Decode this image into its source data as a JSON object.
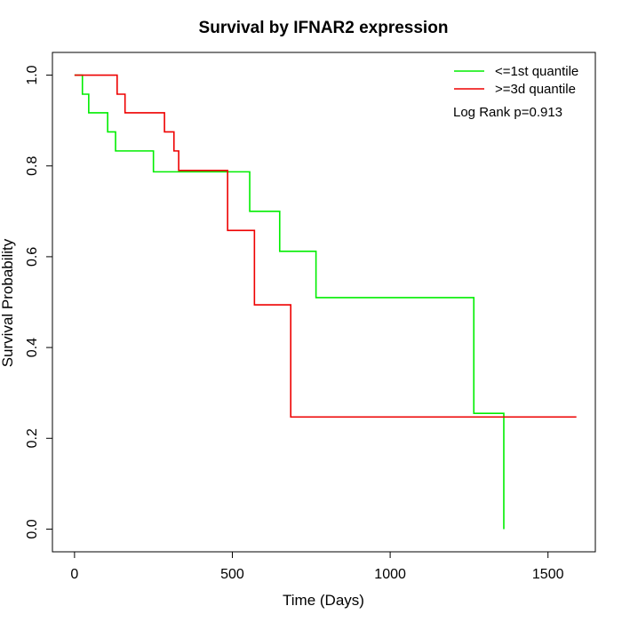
{
  "chart_data": {
    "type": "line",
    "title": "Survival by IFNAR2 expression",
    "xlabel": "Time (Days)",
    "ylabel": "Survival Probability",
    "xlim": [
      -70,
      1650
    ],
    "ylim": [
      -0.05,
      1.05
    ],
    "xticks": [
      0,
      500,
      1000,
      1500
    ],
    "yticks": [
      0.0,
      0.2,
      0.4,
      0.6,
      0.8,
      1.0
    ],
    "xtick_labels": [
      "0",
      "500",
      "1000",
      "1500"
    ],
    "ytick_labels": [
      "0.0",
      "0.2",
      "0.4",
      "0.6",
      "0.8",
      "1.0"
    ],
    "legend_position": "top-right",
    "annotation": "Log Rank p=0.913",
    "grid": false,
    "step": true,
    "series": [
      {
        "name": "<=1st quantile",
        "color": "#00ee00",
        "points": [
          [
            0,
            1.0
          ],
          [
            25,
            0.958
          ],
          [
            45,
            0.917
          ],
          [
            105,
            0.875
          ],
          [
            130,
            0.833
          ],
          [
            250,
            0.787
          ],
          [
            555,
            0.7
          ],
          [
            650,
            0.612
          ],
          [
            765,
            0.51
          ],
          [
            1265,
            0.255
          ],
          [
            1360,
            0.0
          ]
        ]
      },
      {
        "name": ">=3d quantile",
        "color": "#ee0000",
        "points": [
          [
            0,
            1.0
          ],
          [
            135,
            0.958
          ],
          [
            160,
            0.917
          ],
          [
            285,
            0.875
          ],
          [
            315,
            0.833
          ],
          [
            330,
            0.79
          ],
          [
            485,
            0.658
          ],
          [
            570,
            0.494
          ],
          [
            685,
            0.247
          ],
          [
            1590,
            0.247
          ]
        ]
      }
    ]
  }
}
